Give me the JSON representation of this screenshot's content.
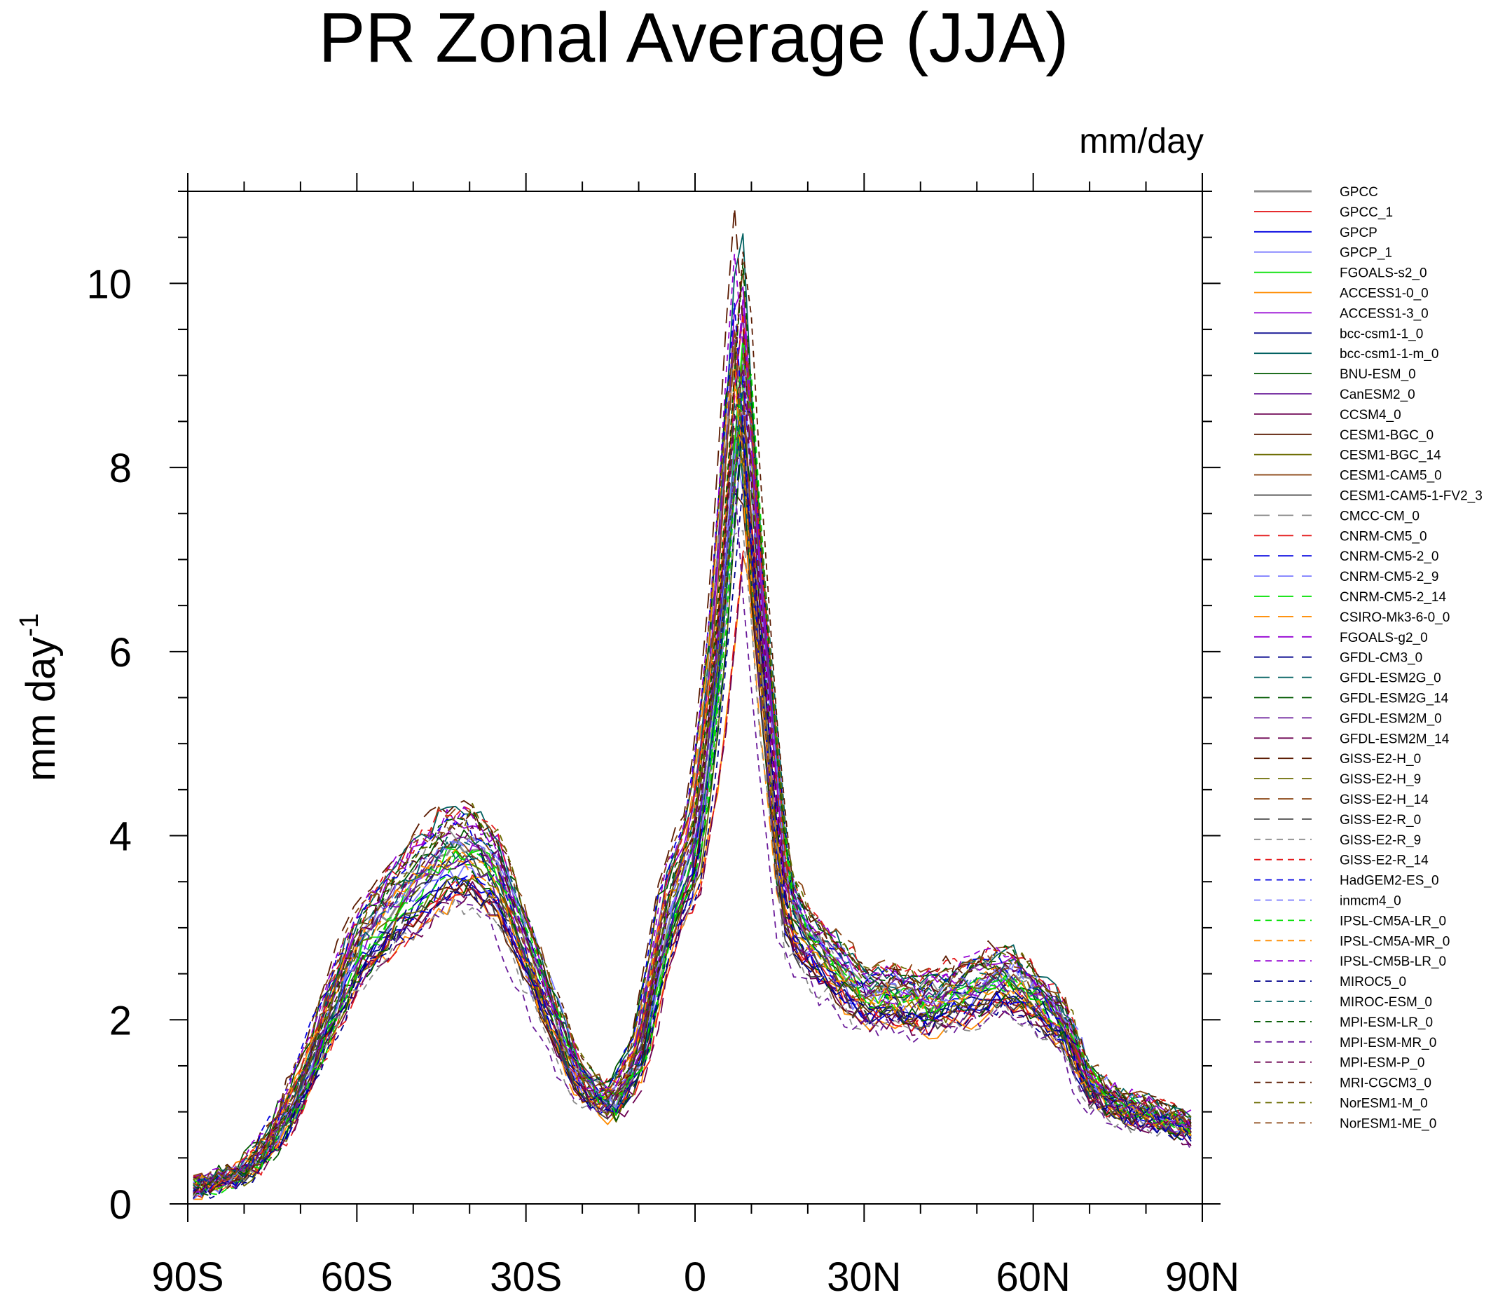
{
  "chart_data": {
    "type": "line",
    "title": "PR Zonal Average (JJA)",
    "units_label": "mm/day",
    "ylabel": "mm day",
    "ylabel_superscript": "-1",
    "xlabel": "",
    "xlim": [
      -90,
      90
    ],
    "ylim": [
      0,
      11
    ],
    "x_ticks": [
      {
        "value": -90,
        "label": "90S"
      },
      {
        "value": -60,
        "label": "60S"
      },
      {
        "value": -30,
        "label": "30S"
      },
      {
        "value": 0,
        "label": "0"
      },
      {
        "value": 30,
        "label": "30N"
      },
      {
        "value": 60,
        "label": "60N"
      },
      {
        "value": 90,
        "label": "90N"
      }
    ],
    "y_ticks": [
      {
        "value": 0,
        "label": "0"
      },
      {
        "value": 2,
        "label": "2"
      },
      {
        "value": 4,
        "label": "4"
      },
      {
        "value": 6,
        "label": "6"
      },
      {
        "value": 8,
        "label": "8"
      },
      {
        "value": 10,
        "label": "10"
      }
    ],
    "x_minor_step": 10,
    "y_minor_step": 0.5,
    "legend_position": "right",
    "reference_profile": {
      "lat": [
        -90,
        -85,
        -80,
        -75,
        -70,
        -65,
        -60,
        -55,
        -50,
        -45,
        -40,
        -35,
        -30,
        -25,
        -20,
        -15,
        -10,
        -5,
        0,
        4,
        8,
        12,
        16,
        20,
        25,
        30,
        35,
        40,
        45,
        50,
        55,
        60,
        65,
        70,
        75,
        80,
        85,
        90
      ],
      "pr": [
        0.15,
        0.25,
        0.35,
        0.7,
        1.3,
        2.1,
        2.8,
        3.2,
        3.5,
        3.8,
        3.9,
        3.6,
        2.8,
        2.0,
        1.3,
        1.1,
        1.6,
        3.2,
        4.0,
        6.0,
        9.2,
        6.0,
        3.3,
        2.9,
        2.6,
        2.3,
        2.3,
        2.2,
        2.3,
        2.4,
        2.5,
        2.3,
        2.0,
        1.3,
        1.1,
        1.0,
        0.9,
        0.8
      ]
    },
    "series": [
      {
        "name": "GPCC",
        "color": "#8c8c8c",
        "dash": "solid",
        "thick": true,
        "seed": 1
      },
      {
        "name": "GPCC_1",
        "color": "#e41a1c",
        "dash": "solid",
        "seed": 2
      },
      {
        "name": "GPCP",
        "color": "#0000e0",
        "dash": "solid",
        "seed": 3
      },
      {
        "name": "GPCP_1",
        "color": "#7a7aff",
        "dash": "solid",
        "seed": 4
      },
      {
        "name": "FGOALS-s2_0",
        "color": "#00e000",
        "dash": "solid",
        "seed": 5
      },
      {
        "name": "ACCESS1-0_0",
        "color": "#ff8c00",
        "dash": "solid",
        "seed": 6
      },
      {
        "name": "ACCESS1-3_0",
        "color": "#9400d3",
        "dash": "solid",
        "seed": 7
      },
      {
        "name": "bcc-csm1-1_0",
        "color": "#00008b",
        "dash": "solid",
        "seed": 8
      },
      {
        "name": "bcc-csm1-1-m_0",
        "color": "#006060",
        "dash": "solid",
        "seed": 9
      },
      {
        "name": "BNU-ESM_0",
        "color": "#005a00",
        "dash": "solid",
        "seed": 10
      },
      {
        "name": "CanESM2_0",
        "color": "#6a1b9a",
        "dash": "solid",
        "seed": 11
      },
      {
        "name": "CCSM4_0",
        "color": "#6b0050",
        "dash": "solid",
        "seed": 12
      },
      {
        "name": "CESM1-BGC_0",
        "color": "#5a1a00",
        "dash": "solid",
        "seed": 13
      },
      {
        "name": "CESM1-BGC_14",
        "color": "#6b6b00",
        "dash": "solid",
        "seed": 14
      },
      {
        "name": "CESM1-CAM5_0",
        "color": "#8b4513",
        "dash": "solid",
        "seed": 15
      },
      {
        "name": "CESM1-CAM5-1-FV2_3",
        "color": "#404040",
        "dash": "solid",
        "seed": 16
      },
      {
        "name": "CMCC-CM_0",
        "color": "#8c8c8c",
        "dash": "longdash",
        "seed": 17
      },
      {
        "name": "CNRM-CM5_0",
        "color": "#e41a1c",
        "dash": "longdash",
        "seed": 18
      },
      {
        "name": "CNRM-CM5-2_0",
        "color": "#0000e0",
        "dash": "longdash",
        "seed": 19
      },
      {
        "name": "CNRM-CM5-2_9",
        "color": "#7a7aff",
        "dash": "longdash",
        "seed": 20
      },
      {
        "name": "CNRM-CM5-2_14",
        "color": "#00e000",
        "dash": "longdash",
        "seed": 21
      },
      {
        "name": "CSIRO-Mk3-6-0_0",
        "color": "#ff8c00",
        "dash": "longdash",
        "seed": 22
      },
      {
        "name": "FGOALS-g2_0",
        "color": "#9400d3",
        "dash": "longdash",
        "seed": 23
      },
      {
        "name": "GFDL-CM3_0",
        "color": "#00008b",
        "dash": "longdash",
        "seed": 24
      },
      {
        "name": "GFDL-ESM2G_0",
        "color": "#006060",
        "dash": "longdash",
        "seed": 25
      },
      {
        "name": "GFDL-ESM2G_14",
        "color": "#005a00",
        "dash": "longdash",
        "seed": 26
      },
      {
        "name": "GFDL-ESM2M_0",
        "color": "#6a1b9a",
        "dash": "longdash",
        "seed": 27
      },
      {
        "name": "GFDL-ESM2M_14",
        "color": "#6b0050",
        "dash": "longdash",
        "seed": 28
      },
      {
        "name": "GISS-E2-H_0",
        "color": "#5a1a00",
        "dash": "longdash",
        "seed": 29
      },
      {
        "name": "GISS-E2-H_9",
        "color": "#6b6b00",
        "dash": "longdash",
        "seed": 30
      },
      {
        "name": "GISS-E2-H_14",
        "color": "#8b4513",
        "dash": "longdash",
        "seed": 31
      },
      {
        "name": "GISS-E2-R_0",
        "color": "#404040",
        "dash": "longdash",
        "seed": 32
      },
      {
        "name": "GISS-E2-R_9",
        "color": "#8c8c8c",
        "dash": "shortdash",
        "seed": 33
      },
      {
        "name": "GISS-E2-R_14",
        "color": "#e41a1c",
        "dash": "shortdash",
        "seed": 34
      },
      {
        "name": "HadGEM2-ES_0",
        "color": "#0000e0",
        "dash": "shortdash",
        "seed": 35
      },
      {
        "name": "inmcm4_0",
        "color": "#7a7aff",
        "dash": "shortdash",
        "seed": 36
      },
      {
        "name": "IPSL-CM5A-LR_0",
        "color": "#00e000",
        "dash": "shortdash",
        "seed": 37
      },
      {
        "name": "IPSL-CM5A-MR_0",
        "color": "#ff8c00",
        "dash": "shortdash",
        "seed": 38
      },
      {
        "name": "IPSL-CM5B-LR_0",
        "color": "#9400d3",
        "dash": "shortdash",
        "seed": 39
      },
      {
        "name": "MIROC5_0",
        "color": "#00008b",
        "dash": "shortdash",
        "seed": 40
      },
      {
        "name": "MIROC-ESM_0",
        "color": "#006060",
        "dash": "shortdash",
        "seed": 41
      },
      {
        "name": "MPI-ESM-LR_0",
        "color": "#005a00",
        "dash": "shortdash",
        "seed": 42
      },
      {
        "name": "MPI-ESM-MR_0",
        "color": "#6a1b9a",
        "dash": "shortdash",
        "seed": 43
      },
      {
        "name": "MPI-ESM-P_0",
        "color": "#6b0050",
        "dash": "shortdash",
        "seed": 44
      },
      {
        "name": "MRI-CGCM3_0",
        "color": "#5a1a00",
        "dash": "shortdash",
        "seed": 45
      },
      {
        "name": "NorESM1-M_0",
        "color": "#6b6b00",
        "dash": "shortdash",
        "seed": 46
      },
      {
        "name": "NorESM1-ME_0",
        "color": "#8b4513",
        "dash": "shortdash",
        "seed": 47
      }
    ]
  }
}
